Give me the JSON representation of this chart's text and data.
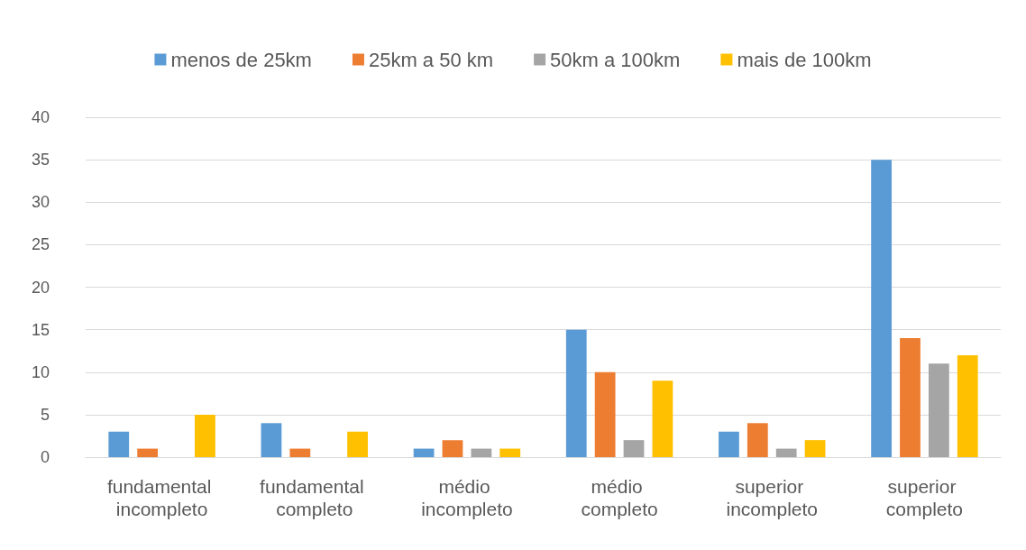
{
  "chart_data": {
    "type": "bar",
    "categories": [
      "fundamental incompleto",
      "fundamental completo",
      "médio incompleto",
      "médio completo",
      "superior incompleto",
      "superior completo"
    ],
    "series": [
      {
        "name": "menos de 25km",
        "color": "#5b9bd5",
        "values": [
          3,
          4,
          1,
          15,
          3,
          35
        ]
      },
      {
        "name": "25km a 50 km",
        "color": "#ed7d31",
        "values": [
          1,
          1,
          2,
          10,
          4,
          14
        ]
      },
      {
        "name": "50km a 100km",
        "color": "#a5a5a5",
        "values": [
          null,
          null,
          1,
          2,
          1,
          11
        ]
      },
      {
        "name": "mais de 100km",
        "color": "#ffc000",
        "values": [
          5,
          3,
          1,
          9,
          2,
          12
        ]
      }
    ],
    "ylim": [
      0,
      40
    ],
    "yticks": [
      0,
      5,
      10,
      15,
      20,
      25,
      30,
      35,
      40
    ],
    "grid": "y",
    "legend": "top"
  }
}
